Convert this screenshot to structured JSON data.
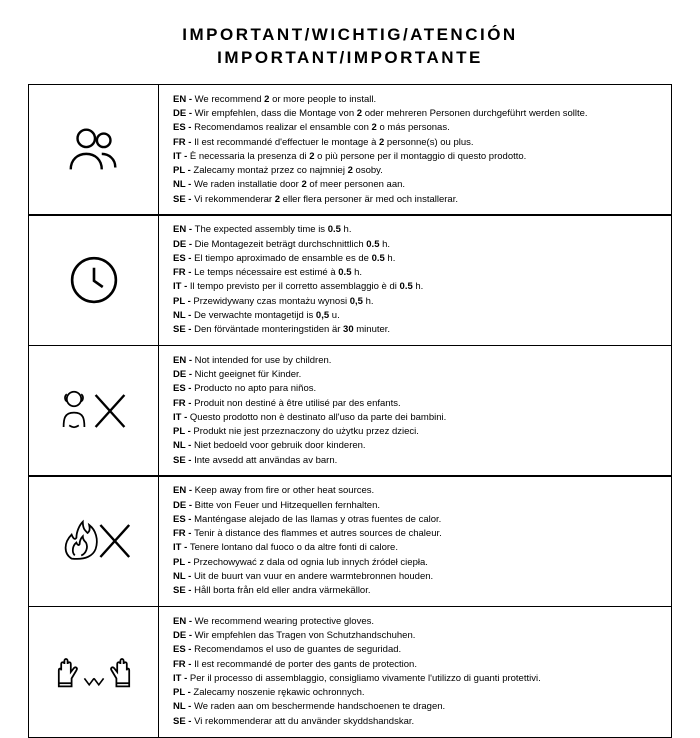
{
  "title_line1": "IMPORTANT/WICHTIG/ATENCIÓN",
  "title_line2": "IMPORTANT/IMPORTANTE",
  "rows": [
    {
      "icon": "people-icon",
      "lines": [
        {
          "lang": "EN",
          "text": "We recommend <b>2</b> or more people to install."
        },
        {
          "lang": "DE",
          "text": "Wir empfehlen, dass die Montage von <b>2</b> oder mehreren Personen durchgeführt werden sollte."
        },
        {
          "lang": "ES",
          "text": "Recomendamos realizar el ensamble con <b>2</b> o más personas."
        },
        {
          "lang": "FR",
          "text": "Il est recommandé d'effectuer le montage à <b>2</b> personne(s) ou plus."
        },
        {
          "lang": "IT",
          "text": "È necessaria la presenza di <b>2</b> o più persone per il montaggio di questo prodotto."
        },
        {
          "lang": "PL",
          "text": "Zalecamy montaż przez co najmniej <b>2</b> osoby."
        },
        {
          "lang": "NL",
          "text": "We raden installatie door <b>2</b> of meer personen aan."
        },
        {
          "lang": "SE",
          "text": "Vi rekommenderar <b>2</b> eller flera personer är med och installerar."
        }
      ]
    },
    {
      "icon": "clock-icon",
      "lines": [
        {
          "lang": "EN",
          "text": "The expected assembly time is <b>0.5</b> h."
        },
        {
          "lang": "DE",
          "text": "Die Montagezeit beträgt durchschnittlich <b>0.5</b> h."
        },
        {
          "lang": "ES",
          "text": "El tiempo aproximado de ensamble es de <b>0.5</b> h."
        },
        {
          "lang": "FR",
          "text": "Le temps nécessaire est estimé à <b>0.5</b> h."
        },
        {
          "lang": "IT",
          "text": "Il tempo previsto per il corretto assemblaggio è di <b>0.5</b> h."
        },
        {
          "lang": "PL",
          "text": "Przewidywany czas montażu wynosi <b>0,5</b> h."
        },
        {
          "lang": "NL",
          "text": "De verwachte montagetijd is <b>0,5</b> u."
        },
        {
          "lang": "SE",
          "text": "Den förväntade monteringstiden är <b>30</b> minuter."
        }
      ]
    },
    {
      "icon": "children-no-icon",
      "lines": [
        {
          "lang": "EN",
          "text": "Not intended for use by children."
        },
        {
          "lang": "DE",
          "text": "Nicht geeignet für Kinder."
        },
        {
          "lang": "ES",
          "text": "Producto no apto para niños."
        },
        {
          "lang": "FR",
          "text": "Produit non destiné à être utilisé par des enfants."
        },
        {
          "lang": "IT",
          "text": "Questo prodotto non è destinato all'uso da parte dei bambini."
        },
        {
          "lang": "PL",
          "text": "Produkt nie jest przeznaczony do użytku przez dzieci."
        },
        {
          "lang": "NL",
          "text": "Niet bedoeld voor gebruik door kinderen."
        },
        {
          "lang": "SE",
          "text": "Inte avsedd att användas av barn."
        }
      ]
    },
    {
      "icon": "fire-no-icon",
      "lines": [
        {
          "lang": "EN",
          "text": "Keep away from fire or other heat sources."
        },
        {
          "lang": "DE",
          "text": "Bitte von Feuer und Hitzequellen fernhalten."
        },
        {
          "lang": "ES",
          "text": "Manténgase alejado de las llamas y otras fuentes de calor."
        },
        {
          "lang": "FR",
          "text": "Tenir à distance des flammes et autres sources de chaleur."
        },
        {
          "lang": "IT",
          "text": "Tenere lontano dal fuoco o da altre fonti di calore."
        },
        {
          "lang": "PL",
          "text": "Przechowywać z dala od ognia lub innych źródeł ciepła."
        },
        {
          "lang": "NL",
          "text": "Uit de buurt van vuur en andere warmtebronnen houden."
        },
        {
          "lang": "SE",
          "text": "Håll borta från eld eller andra värmekällor."
        }
      ]
    },
    {
      "icon": "gloves-icon",
      "lines": [
        {
          "lang": "EN",
          "text": "We recommend wearing protective gloves."
        },
        {
          "lang": "DE",
          "text": "Wir empfehlen das Tragen von Schutzhandschuhen."
        },
        {
          "lang": "ES",
          "text": "Recomendamos el uso de guantes de seguridad."
        },
        {
          "lang": "FR",
          "text": "Il est recommandé de porter des gants de protection."
        },
        {
          "lang": "IT",
          "text": "Per il processo di assemblaggio, consigliamo vivamente l'utilizzo di guanti protettivi."
        },
        {
          "lang": "PL",
          "text": "Zalecamy noszenie rękawic ochronnych."
        },
        {
          "lang": "NL",
          "text": "We raden aan om beschermende handschoenen te dragen."
        },
        {
          "lang": "SE",
          "text": "Vi rekommenderar att du använder skyddshandskar."
        }
      ]
    }
  ]
}
